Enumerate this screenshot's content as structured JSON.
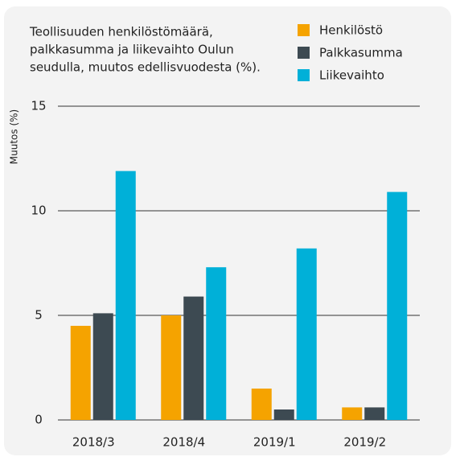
{
  "chart_data": {
    "type": "bar",
    "title": [
      "Teollisuuden henkilöstömäärä,",
      "palkkasumma ja liikevaihto Oulun",
      "seudulla, muutos edellisvuodesta (%)."
    ],
    "y_label": "Muutos (%)",
    "categories": [
      "2018/3",
      "2018/4",
      "2019/1",
      "2019/2"
    ],
    "series": [
      {
        "name": "Henkilöstö",
        "color": "#f5a300",
        "values": [
          4.5,
          5.0,
          1.5,
          0.6
        ]
      },
      {
        "name": "Palkkasumma",
        "color": "#3d4a52",
        "values": [
          5.1,
          5.9,
          0.5,
          0.6
        ]
      },
      {
        "name": "Liikevaihto",
        "color": "#00b0d8",
        "values": [
          11.9,
          7.3,
          8.2,
          10.9
        ]
      }
    ],
    "ylim": [
      0,
      15
    ],
    "yticks": [
      0,
      5,
      10,
      15
    ],
    "grid": true,
    "legend": "top-right"
  }
}
